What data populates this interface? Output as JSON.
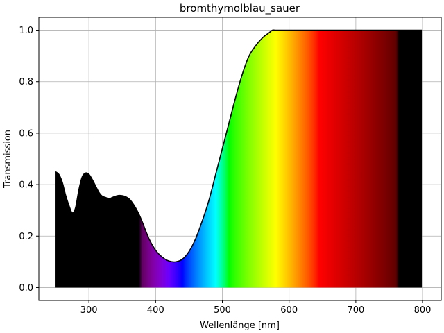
{
  "chart_data": {
    "type": "area",
    "title": "bromthymolblau_sauer",
    "xlabel": "Wellenlänge [nm]",
    "ylabel": "Transmission",
    "xlim": [
      225,
      828
    ],
    "ylim": [
      -0.05,
      1.05
    ],
    "grid": true,
    "x_ticks": [
      300,
      400,
      500,
      600,
      700,
      800
    ],
    "x_tick_labels": [
      "300",
      "400",
      "500",
      "600",
      "700",
      "800"
    ],
    "y_ticks": [
      0.0,
      0.2,
      0.4,
      0.6,
      0.8,
      1.0
    ],
    "y_tick_labels": [
      "0.0",
      "0.2",
      "0.4",
      "0.6",
      "0.8",
      "1.0"
    ],
    "fill": "visible-spectrum colors under the curve",
    "series": [
      {
        "x": [
          250,
          255,
          260,
          265,
          270,
          275,
          280,
          285,
          290,
          295,
          300,
          305,
          310,
          315,
          320,
          325,
          330,
          335,
          340,
          345,
          350,
          355,
          360,
          365,
          370,
          375,
          380,
          390,
          400,
          410,
          420,
          430,
          440,
          450,
          460,
          470,
          480,
          490,
          500,
          510,
          520,
          530,
          540,
          550,
          560,
          570,
          575,
          580,
          600,
          650,
          700,
          750,
          800
        ],
        "y": [
          0.45,
          0.44,
          0.41,
          0.36,
          0.32,
          0.29,
          0.31,
          0.38,
          0.43,
          0.445,
          0.44,
          0.42,
          0.395,
          0.37,
          0.355,
          0.35,
          0.345,
          0.35,
          0.355,
          0.358,
          0.357,
          0.353,
          0.345,
          0.33,
          0.31,
          0.285,
          0.255,
          0.19,
          0.145,
          0.118,
          0.103,
          0.1,
          0.11,
          0.14,
          0.19,
          0.26,
          0.34,
          0.44,
          0.54,
          0.64,
          0.74,
          0.83,
          0.9,
          0.94,
          0.97,
          0.99,
          1.0,
          1.0,
          1.0,
          1.0,
          1.0,
          1.0,
          1.0
        ]
      }
    ]
  }
}
